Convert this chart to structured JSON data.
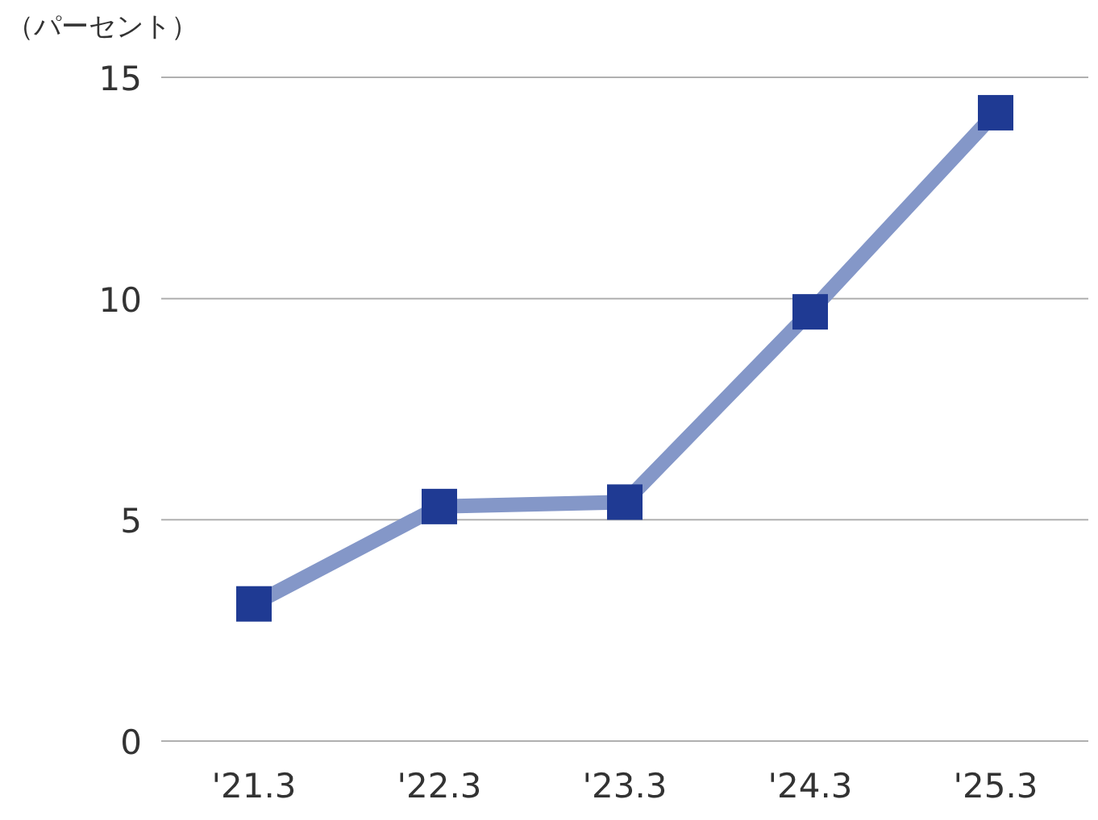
{
  "chart_data": {
    "type": "line",
    "ylabel": "（パーセント）",
    "categories": [
      "'21.3",
      "'22.3",
      "'23.3",
      "'24.3",
      "'25.3"
    ],
    "series": [
      {
        "color": "#8497c8",
        "colors": [
          "#1f3a93",
          "#1f3a93",
          "#1f3a93",
          "#1f3a93",
          "#1f3a93"
        ],
        "values": [
          3.1,
          5.3,
          5.4,
          9.7,
          14.2
        ]
      }
    ],
    "ylim": [
      0,
      15
    ],
    "yticks": [
      0,
      5,
      10,
      15
    ],
    "grid": "y",
    "marker": "square",
    "line_style": "solid"
  }
}
